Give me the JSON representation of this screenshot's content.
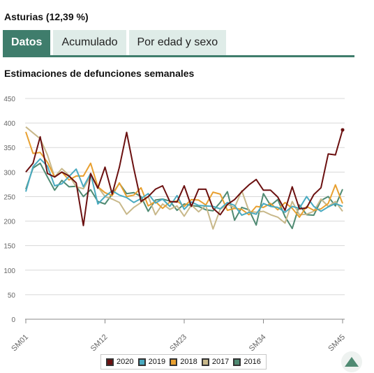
{
  "header": {
    "region_title": "Asturias (12,39 %)"
  },
  "tabs": [
    {
      "label": "Datos",
      "active": true
    },
    {
      "label": "Acumulado",
      "active": false
    },
    {
      "label": "Por edad y sexo",
      "active": false
    }
  ],
  "chart_title": "Estimaciones de defunciones semanales",
  "colors": {
    "accent": "#3f7d6c",
    "tab_inactive": "#dfece8"
  },
  "scroll_top_icon": "triangle-up-icon",
  "chart_data": {
    "type": "line",
    "title": "Estimaciones de defunciones semanales",
    "xlabel": "",
    "ylabel": "",
    "ylim": [
      0,
      450
    ],
    "yticks": [
      0,
      50,
      100,
      150,
      200,
      250,
      300,
      350,
      400,
      450
    ],
    "x": [
      "SM01",
      "SM02",
      "SM03",
      "SM04",
      "SM05",
      "SM06",
      "SM07",
      "SM08",
      "SM09",
      "SM10",
      "SM11",
      "SM12",
      "SM13",
      "SM14",
      "SM15",
      "SM16",
      "SM17",
      "SM18",
      "SM19",
      "SM20",
      "SM21",
      "SM22",
      "SM23",
      "SM24",
      "SM25",
      "SM26",
      "SM27",
      "SM28",
      "SM29",
      "SM30",
      "SM31",
      "SM32",
      "SM33",
      "SM34",
      "SM35",
      "SM36",
      "SM37",
      "SM38",
      "SM39",
      "SM40",
      "SM41",
      "SM42",
      "SM43",
      "SM44",
      "SM45"
    ],
    "xtick_labels": [
      "SM01",
      "SM12",
      "SM23",
      "SM34",
      "SM45"
    ],
    "grid": true,
    "legend_position": "bottom",
    "series": [
      {
        "name": "2020",
        "color": "#6b1010",
        "values": [
          300,
          318,
          372,
          297,
          290,
          300,
          292,
          278,
          191,
          297,
          267,
          310,
          255,
          310,
          381,
          307,
          240,
          250,
          265,
          272,
          240,
          239,
          272,
          230,
          265,
          265,
          226,
          213,
          234,
          244,
          260,
          274,
          285,
          263,
          263,
          249,
          222,
          270,
          225,
          227,
          254,
          268,
          337,
          335,
          386
        ]
      },
      {
        "name": "2019",
        "color": "#4aaac0",
        "values": [
          260,
          311,
          327,
          312,
          272,
          276,
          291,
          306,
          270,
          297,
          235,
          250,
          262,
          253,
          248,
          238,
          246,
          256,
          237,
          245,
          230,
          252,
          224,
          239,
          232,
          231,
          230,
          225,
          238,
          232,
          212,
          218,
          214,
          236,
          230,
          228,
          218,
          230,
          226,
          250,
          230,
          220,
          229,
          236,
          230
        ]
      },
      {
        "name": "2018",
        "color": "#e8a030",
        "values": [
          382,
          338,
          340,
          320,
          290,
          300,
          284,
          292,
          292,
          318,
          270,
          258,
          252,
          278,
          250,
          253,
          268,
          231,
          240,
          226,
          239,
          241,
          230,
          244,
          243,
          233,
          259,
          255,
          222,
          226,
          224,
          213,
          230,
          228,
          236,
          223,
          238,
          226,
          208,
          230,
          222,
          225,
          236,
          274,
          236
        ]
      },
      {
        "name": "2017",
        "color": "#c8b88a",
        "values": [
          392,
          380,
          368,
          335,
          290,
          307,
          293,
          270,
          266,
          292,
          270,
          250,
          245,
          238,
          214,
          228,
          238,
          250,
          213,
          235,
          224,
          231,
          210,
          233,
          219,
          232,
          184,
          224,
          234,
          228,
          262,
          220,
          218,
          220,
          213,
          208,
          196,
          240,
          213,
          214,
          220,
          245,
          230,
          240,
          220
        ]
      },
      {
        "name": "2016",
        "color": "#4f8a72",
        "values": [
          265,
          308,
          318,
          290,
          263,
          283,
          270,
          271,
          250,
          264,
          240,
          235,
          255,
          277,
          256,
          258,
          250,
          220,
          243,
          245,
          241,
          222,
          235,
          232,
          230,
          223,
          221,
          238,
          260,
          202,
          228,
          223,
          192,
          256,
          232,
          244,
          209,
          185,
          233,
          213,
          212,
          242,
          250,
          231,
          265
        ]
      }
    ]
  }
}
